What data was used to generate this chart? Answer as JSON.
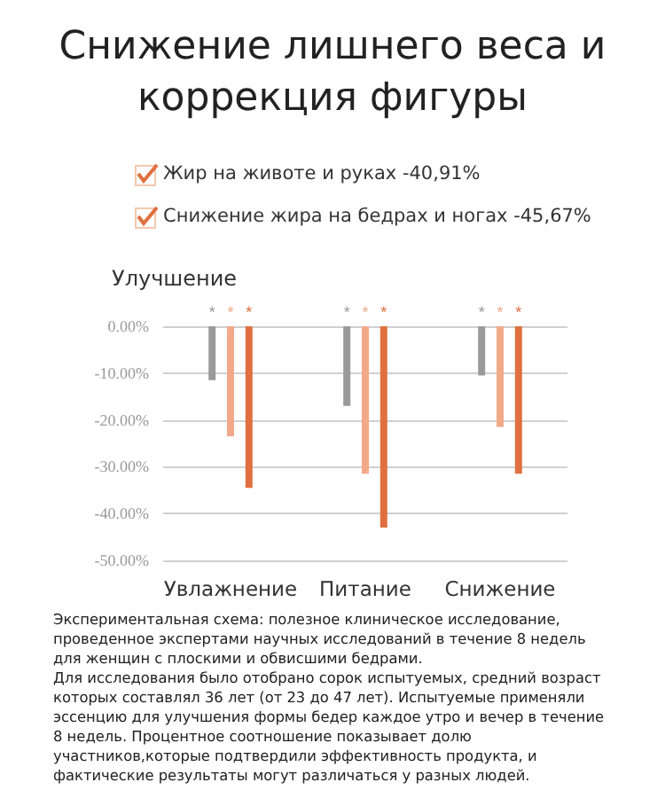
{
  "chart_data": {
    "type": "bar",
    "title": "Снижение лишнего веса и коррекция фигуры",
    "ylabel": "Улучшение",
    "categories": [
      "Увлажнение",
      "Питание",
      "Снижение"
    ],
    "series": [
      {
        "color": "#9a9a9a",
        "values": [
          -11.5,
          -17,
          -10.5
        ]
      },
      {
        "color": "#f2a98a",
        "values": [
          -23.5,
          -31.5,
          -21.5
        ]
      },
      {
        "color": "#e0703f",
        "values": [
          -34.5,
          -43,
          -31.5
        ]
      }
    ],
    "ylim": [
      -50,
      0
    ],
    "yticks": [
      {
        "value": -50,
        "label": "-50.00%"
      },
      {
        "value": -40,
        "label": "-40.00%"
      },
      {
        "value": -30,
        "label": "-30.00%"
      },
      {
        "value": -20,
        "label": "-20.00%"
      },
      {
        "value": -10,
        "label": "-10.00%"
      },
      {
        "value": 0,
        "label": "0.00%"
      }
    ],
    "grid": "y",
    "annotations": [
      "Жир на животе и руках -40,91%",
      "Снижение жира на бедрах и ногах -45,67%",
      "*",
      "*",
      "*",
      "*",
      "*",
      "*",
      "*",
      "*",
      "*",
      "Экспериментальная схема: полезное клиническое исследование, проведенное экспертами научных исследований в течение 8 недель для женщин с плоскими и обвисшими бедрами.\nДля исследования было отобрано сорок испытуемых, средний возраст которых составлял 36 лет (от 23 до 47 лет). Испытуемые применяли эссенцию для улучшения формы бедер каждое утро и вечер в течение 8 недель. Процентное соотношение показывает долю участников,которые подтвердили эффективность продукта, и фактические результаты могут различаться у разных людей."
    ]
  }
}
